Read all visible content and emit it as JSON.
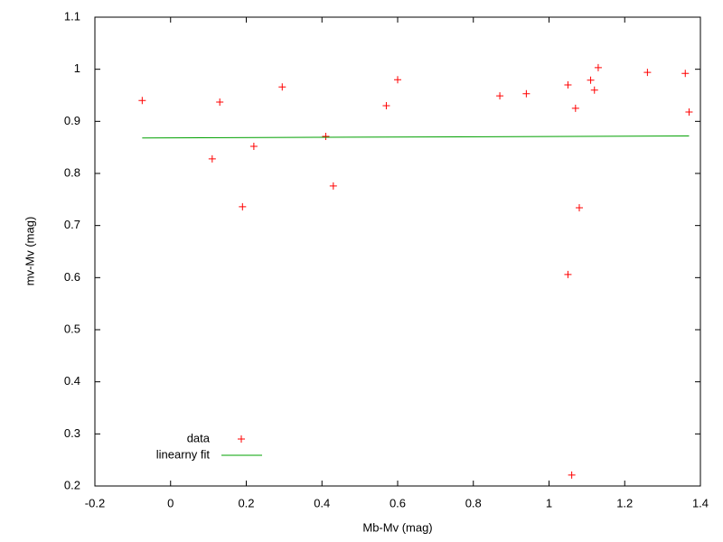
{
  "chart_data": {
    "type": "scatter",
    "x_label": "Mb-Mv (mag)",
    "y_label": "mv-Mv (mag)",
    "xlim": [
      -0.2,
      1.4
    ],
    "xticks": [
      -0.2,
      0,
      0.2,
      0.4,
      0.6,
      0.8,
      1,
      1.2,
      1.4
    ],
    "ylim": [
      0.2,
      1.1
    ],
    "yticks": [
      0.2,
      0.3,
      0.4,
      0.5,
      0.6,
      0.7,
      0.8,
      0.9,
      1,
      1.1
    ],
    "grid": false,
    "legend_position": "bottom-left",
    "series": [
      {
        "name": "data",
        "type": "scatter",
        "color": "#ff0000",
        "x": [
          -0.075,
          0.13,
          0.295,
          0.11,
          0.22,
          0.19,
          0.41,
          0.43,
          0.57,
          0.6,
          0.87,
          0.94,
          1.05,
          1.07,
          1.11,
          1.12,
          1.13,
          1.08,
          1.05,
          1.06,
          1.26,
          1.36,
          1.37
        ],
        "values": [
          0.94,
          0.937,
          0.966,
          0.828,
          0.852,
          0.736,
          0.871,
          0.776,
          0.93,
          0.98,
          0.949,
          0.953,
          0.97,
          0.925,
          0.979,
          0.96,
          1.003,
          0.734,
          0.606,
          0.221,
          0.994,
          0.992,
          0.918
        ]
      },
      {
        "name": "linearny fit",
        "type": "line",
        "color": "#00a000",
        "x": [
          -0.075,
          1.37
        ],
        "values": [
          0.868,
          0.872
        ]
      }
    ]
  }
}
